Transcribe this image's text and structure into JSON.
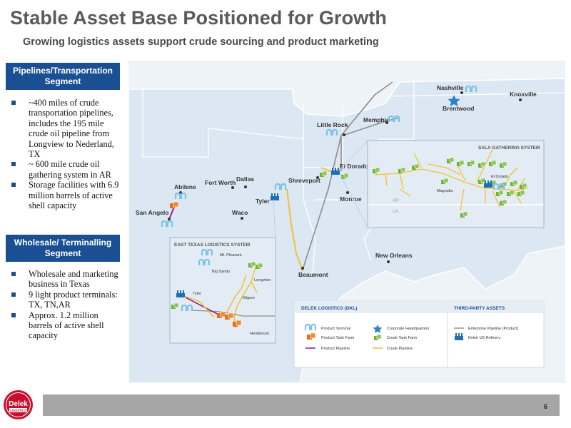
{
  "header": {
    "title": "Stable Asset Base Positioned for Growth",
    "subtitle": "Growing logistics assets support crude sourcing and product marketing"
  },
  "pipelines_segment": {
    "heading": "Pipelines/Transportation Segment",
    "bullets": [
      "~400 miles of crude transportation pipelines, includes the 195 mile crude oil pipeline from Longview to Nederland, TX",
      "~ 600 mile crude oil gathering system in AR",
      "Storage facilities with 6.9 million barrels of active shell capacity"
    ]
  },
  "wholesale_segment": {
    "heading": "Wholesale/ Terminalling Segment",
    "bullets": [
      "Wholesale and marketing business in Texas",
      "9 light product terminals: TX, TN,AR",
      "Approx. 1.2 million barrels of active shell capacity"
    ]
  },
  "map": {
    "cities": {
      "nashville": "Nashville",
      "knoxville": "Knoxville",
      "brentwood": "Brentwood",
      "memphis": "Memphis",
      "little_rock": "Little Rock",
      "el_dorado": "El Dorado",
      "shreveport": "Shreveport",
      "monroe": "Monroe",
      "tyler": "Tyler",
      "abilene": "Abilene",
      "fort_worth": "Fort Worth",
      "dallas": "Dallas",
      "waco": "Waco",
      "san_angelo": "San Angelo",
      "new_orleans": "New Orleans",
      "beaumont": "Beaumont"
    },
    "sala": {
      "title": "SALA GATHERING SYSTEM",
      "magnolia": "Magnolia",
      "el_dorado": "El Dorado",
      "ar": "AR",
      "la": "LA"
    },
    "east_texas": {
      "title": "EAST TEXAS LOGISTICS SYSTEM",
      "mt_pleasant": "Mt. Pleasant",
      "big_sandy": "Big Sandy",
      "longview": "Longview",
      "tyler": "Tyler",
      "kilgore": "Kilgore",
      "henderson": "Henderson"
    },
    "legend": {
      "dkl_title": "DELEK LOGISTICS (DKL)",
      "third_title": "THIRD-PARTY ASSETS",
      "product_terminal": "Product Terminal",
      "corporate_hq": "Corporate Headquarters",
      "product_tank_farm": "Product Tank Farm",
      "crude_tank_farm": "Crude Tank Farm",
      "product_pipeline": "Product Pipeline",
      "crude_pipeline": "Crude Pipeline",
      "enterprise_pipeline": "Enterprise Pipeline (Product)",
      "delek_refinery": "Delek US Refinery"
    },
    "colors": {
      "land": "#dbe7f3",
      "state_border": "#ffffff",
      "water": "#ffffff",
      "crude_pipeline": "#f2c12e",
      "product_pipeline": "#8e2a8a",
      "enterprise_pipeline": "#8d8d8d",
      "terminal": "#9fd3ec",
      "product_tank": "#ef7d22",
      "crude_tank": "#7fbb41",
      "refinery": "#1e6fb3",
      "hq_star": "#2c82c9"
    }
  },
  "footer": {
    "page_number": "6",
    "logo_text": "Delek",
    "logo_subtext": "LOGISTICS"
  }
}
